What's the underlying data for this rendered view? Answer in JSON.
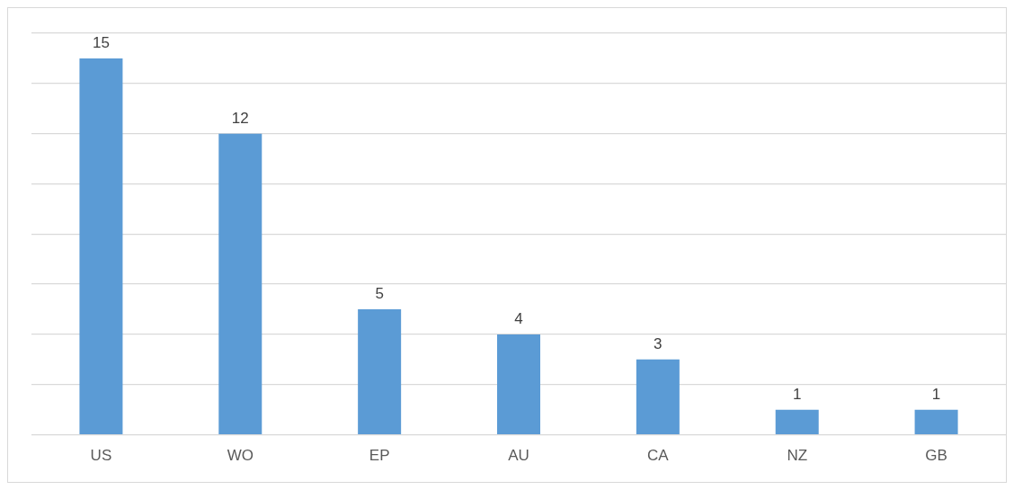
{
  "chart_data": {
    "type": "bar",
    "categories": [
      "US",
      "WO",
      "EP",
      "AU",
      "CA",
      "NZ",
      "GB"
    ],
    "values": [
      15,
      12,
      5,
      4,
      3,
      1,
      1
    ],
    "color": "#5b9bd5",
    "ylim": [
      0,
      16
    ],
    "yticks": [
      {
        "value": 0,
        "label": null
      },
      {
        "value": 2,
        "label": null
      },
      {
        "value": 4,
        "label": null
      },
      {
        "value": 6,
        "label": null
      },
      {
        "value": 8,
        "label": null
      },
      {
        "value": 10,
        "label": null
      },
      {
        "value": 12,
        "label": null
      },
      {
        "value": 14,
        "label": null
      },
      {
        "value": 16,
        "label": null
      }
    ],
    "tick_labels": "x",
    "grid": "y",
    "data_labels": true
  }
}
